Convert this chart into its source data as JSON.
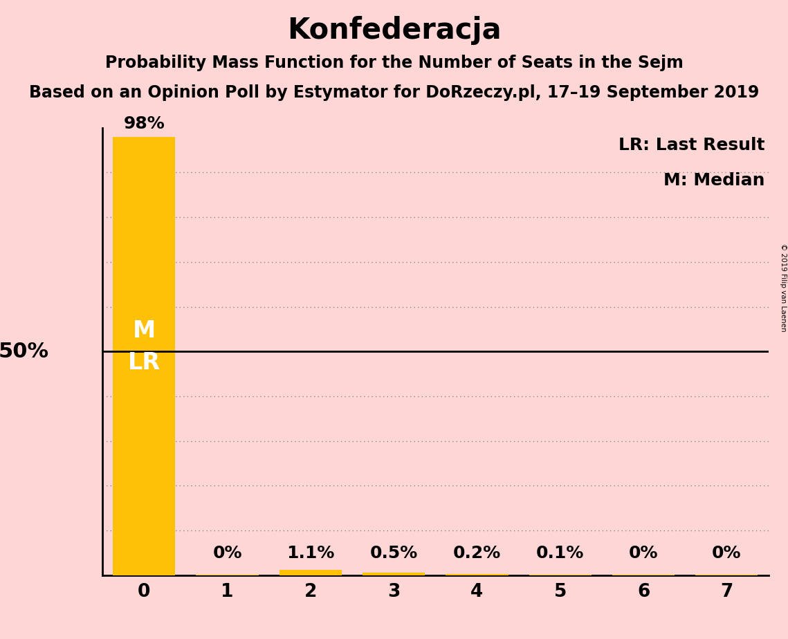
{
  "title": "Konfederacja",
  "subtitle1": "Probability Mass Function for the Number of Seats in the Sejm",
  "subtitle2": "Based on an Opinion Poll by Estymator for DoRzeczy.pl, 17–19 September 2019",
  "copyright": "© 2019 Filip van Laenen",
  "background_color": "#ffd6d6",
  "bar_color": "#FFC107",
  "categories": [
    0,
    1,
    2,
    3,
    4,
    5,
    6,
    7
  ],
  "values": [
    0.98,
    0.001,
    0.011,
    0.005,
    0.002,
    0.001,
    0.0005,
    0.0005
  ],
  "bar_labels": [
    "98%",
    "0%",
    "1.1%",
    "0.5%",
    "0.2%",
    "0.1%",
    "0%",
    "0%"
  ],
  "ylim": [
    0,
    1.0
  ],
  "ylabel_50": "50%",
  "legend_lr": "LR: Last Result",
  "legend_m": "M: Median",
  "line_50_color": "#000000",
  "dotted_line_color": "#888888",
  "title_fontsize": 30,
  "subtitle1_fontsize": 17,
  "subtitle2_fontsize": 17,
  "bar_label_fontsize": 18,
  "axis_tick_fontsize": 19,
  "ylabel_fontsize": 22,
  "legend_fontsize": 18,
  "ml_fontsize": 24
}
